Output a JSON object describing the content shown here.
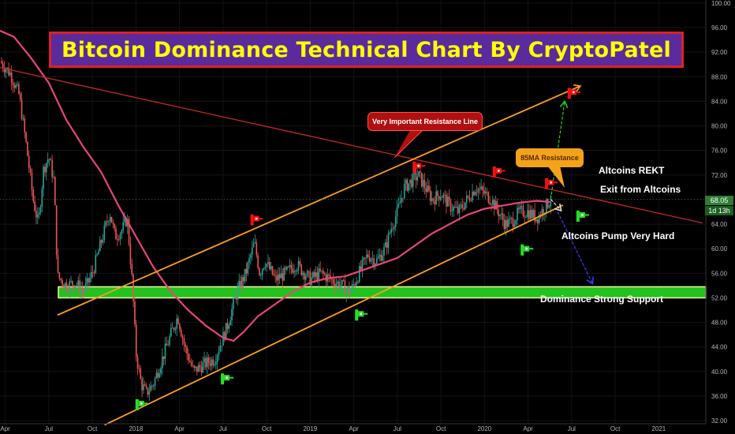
{
  "title": "Bitcoin Dominance Technical Chart By CryptoPatel",
  "callouts": {
    "resistance_line": "Very Important Resistance Line",
    "sma_resistance": "85MA Resistance"
  },
  "annotations": {
    "altcoins_rekt": "Altcoins REKT",
    "exit_altcoins": "Exit from Altcoins",
    "altcoins_pump": "Altcoins Pump Very Hard",
    "strong_support": "Dominance Strong Support"
  },
  "price_badge": {
    "value": "68.05",
    "timeframe": "1d 13h"
  },
  "colors": {
    "up": "#26a69a",
    "down": "#ef5350",
    "ma": "#e8457a",
    "channel": "#ff9f1c",
    "resistance": "#c62828",
    "support_fill": "#22c21f",
    "support_edge": "#f6f6a0",
    "badge": "#2e7d32"
  },
  "chart_data": {
    "type": "candlestick",
    "title": "Bitcoin Dominance Technical Chart By CryptoPatel",
    "x_ticks": [
      "Apr",
      "Jul",
      "Oct",
      "2018",
      "Apr",
      "Jul",
      "Oct",
      "2019",
      "Apr",
      "Jul",
      "Oct",
      "2020",
      "Apr",
      "Jul",
      "Oct",
      "2021"
    ],
    "y_ticks": [
      "32.00",
      "36.00",
      "40.00",
      "44.00",
      "48.00",
      "52.00",
      "56.00",
      "60.00",
      "64.00",
      "68.00",
      "72.00",
      "76.00",
      "80.00",
      "84.00",
      "88.00",
      "92.00",
      "96.00",
      "100.00"
    ],
    "ylim": [
      31.5,
      100.5
    ],
    "xlim": [
      2017.22,
      2021.27
    ],
    "last_price": 68.05,
    "price_path": [
      [
        2017.22,
        90.5
      ],
      [
        2017.28,
        88.5
      ],
      [
        2017.33,
        85
      ],
      [
        2017.37,
        77
      ],
      [
        2017.41,
        68
      ],
      [
        2017.44,
        64
      ],
      [
        2017.47,
        73
      ],
      [
        2017.5,
        75
      ],
      [
        2017.53,
        71
      ],
      [
        2017.55,
        55.5
      ],
      [
        2017.6,
        54
      ],
      [
        2017.65,
        54.5
      ],
      [
        2017.7,
        53
      ],
      [
        2017.75,
        56
      ],
      [
        2017.8,
        61
      ],
      [
        2017.85,
        66
      ],
      [
        2017.88,
        62
      ],
      [
        2017.92,
        63
      ],
      [
        2017.95,
        65
      ],
      [
        2017.98,
        54
      ],
      [
        2018.0,
        43
      ],
      [
        2018.03,
        38
      ],
      [
        2018.06,
        36.5
      ],
      [
        2018.1,
        38
      ],
      [
        2018.15,
        42
      ],
      [
        2018.2,
        46
      ],
      [
        2018.24,
        49
      ],
      [
        2018.28,
        44
      ],
      [
        2018.33,
        40
      ],
      [
        2018.38,
        41
      ],
      [
        2018.45,
        42
      ],
      [
        2018.52,
        47
      ],
      [
        2018.58,
        53
      ],
      [
        2018.63,
        56
      ],
      [
        2018.68,
        61
      ],
      [
        2018.71,
        56
      ],
      [
        2018.74,
        58
      ],
      [
        2018.8,
        55
      ],
      [
        2018.86,
        56
      ],
      [
        2018.92,
        57.5
      ],
      [
        2019.0,
        55
      ],
      [
        2019.06,
        56
      ],
      [
        2019.12,
        55
      ],
      [
        2019.18,
        54
      ],
      [
        2019.23,
        53
      ],
      [
        2019.28,
        56
      ],
      [
        2019.33,
        59
      ],
      [
        2019.38,
        58
      ],
      [
        2019.43,
        60
      ],
      [
        2019.46,
        63
      ],
      [
        2019.5,
        66
      ],
      [
        2019.54,
        70
      ],
      [
        2019.58,
        71
      ],
      [
        2019.62,
        72
      ],
      [
        2019.66,
        70
      ],
      [
        2019.7,
        68
      ],
      [
        2019.75,
        69
      ],
      [
        2019.8,
        67
      ],
      [
        2019.85,
        66
      ],
      [
        2019.9,
        68
      ],
      [
        2019.95,
        70
      ],
      [
        2020.0,
        69
      ],
      [
        2020.04,
        68
      ],
      [
        2020.08,
        66
      ],
      [
        2020.12,
        64
      ],
      [
        2020.16,
        64.5
      ],
      [
        2020.2,
        66
      ],
      [
        2020.25,
        66
      ],
      [
        2020.3,
        65
      ],
      [
        2020.34,
        66.5
      ],
      [
        2020.38,
        68.05
      ]
    ],
    "ma_path": [
      [
        2017.22,
        95.5
      ],
      [
        2017.3,
        94.5
      ],
      [
        2017.4,
        91
      ],
      [
        2017.5,
        87
      ],
      [
        2017.6,
        81
      ],
      [
        2017.7,
        76.5
      ],
      [
        2017.8,
        72.5
      ],
      [
        2017.9,
        67
      ],
      [
        2018.0,
        62
      ],
      [
        2018.1,
        57
      ],
      [
        2018.2,
        53
      ],
      [
        2018.3,
        50
      ],
      [
        2018.4,
        47.5
      ],
      [
        2018.5,
        45.5
      ],
      [
        2018.56,
        45
      ],
      [
        2018.62,
        46.5
      ],
      [
        2018.7,
        49
      ],
      [
        2018.8,
        51
      ],
      [
        2018.9,
        53
      ],
      [
        2019.0,
        54.5
      ],
      [
        2019.1,
        55.2
      ],
      [
        2019.2,
        55.5
      ],
      [
        2019.3,
        56.5
      ],
      [
        2019.4,
        57.5
      ],
      [
        2019.5,
        58.5
      ],
      [
        2019.6,
        60.5
      ],
      [
        2019.7,
        62.5
      ],
      [
        2019.8,
        64
      ],
      [
        2019.9,
        65.5
      ],
      [
        2020.0,
        66.5
      ],
      [
        2020.1,
        67
      ],
      [
        2020.2,
        67.5
      ],
      [
        2020.3,
        67.8
      ],
      [
        2020.38,
        67.6
      ]
    ],
    "resistance_line": [
      [
        2017.22,
        89.5
      ],
      [
        2021.25,
        64.2
      ]
    ],
    "channel_upper": [
      [
        2017.55,
        49.2
      ],
      [
        2020.55,
        86.5
      ]
    ],
    "channel_lower": [
      [
        2017.82,
        31.3
      ],
      [
        2020.45,
        67.1
      ]
    ],
    "support_zone": [
      52,
      53.8
    ],
    "projections": [
      {
        "from": [
          2020.38,
          68.05
        ],
        "to": [
          2020.46,
          84
        ],
        "color": "#22d022"
      },
      {
        "from": [
          2020.38,
          68.05
        ],
        "to": [
          2020.44,
          66.2
        ],
        "color": "#e0e0e0"
      },
      {
        "from": [
          2020.42,
          66
        ],
        "to": [
          2020.62,
          54.3
        ],
        "color": "#3a3af5"
      }
    ],
    "flags_red": [
      [
        2018.68,
        64.7
      ],
      [
        2019.61,
        73.3
      ],
      [
        2020.07,
        72.5
      ],
      [
        2020.37,
        70.6
      ],
      [
        2020.5,
        85.3
      ]
    ],
    "flags_green": [
      [
        2018.02,
        34.6
      ],
      [
        2018.51,
        38.8
      ],
      [
        2019.28,
        49.2
      ],
      [
        2020.23,
        59.8
      ],
      [
        2020.55,
        65.3
      ]
    ]
  }
}
